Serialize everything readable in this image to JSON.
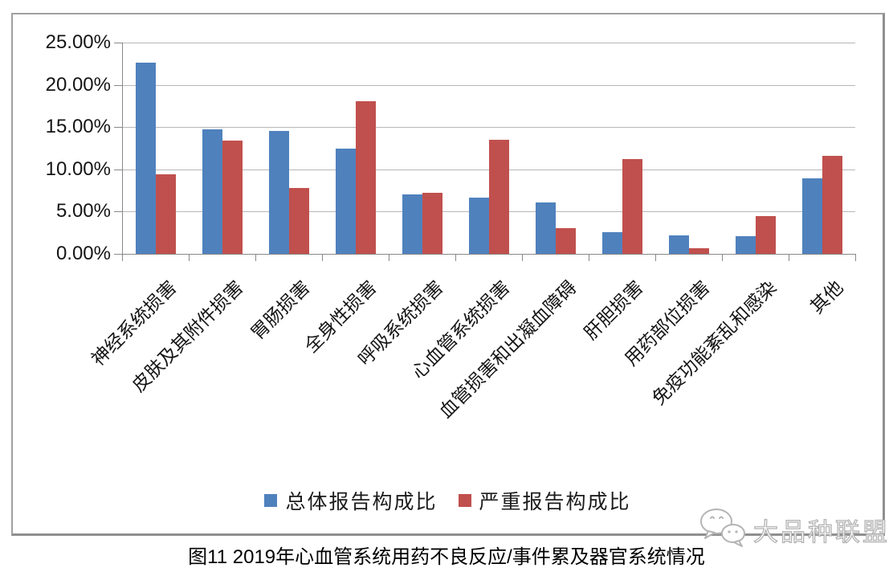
{
  "caption": "图11 2019年心血管系统用药不良反应/事件累及器官系统情况",
  "watermark": {
    "text": "大品种联盟",
    "icon": "wechat-bubbles-icon"
  },
  "colors": {
    "series_blue": "#4F81BD",
    "series_red": "#C0504D",
    "gridline": "#b7b7b7",
    "axis": "#898989"
  },
  "chart_data": {
    "type": "bar",
    "title": "图11 2019年心血管系统用药不良反应/事件累及器官系统情况",
    "xlabel": "",
    "ylabel": "",
    "ylim": [
      0,
      25
    ],
    "ytick_step": 5,
    "yticks": [
      {
        "value": 25,
        "label": "25.00%"
      },
      {
        "value": 20,
        "label": "20.00%"
      },
      {
        "value": 15,
        "label": "15.00%"
      },
      {
        "value": 10,
        "label": "10.00%"
      },
      {
        "value": 5,
        "label": "5.00%"
      },
      {
        "value": 0,
        "label": "0.00%"
      }
    ],
    "grid": true,
    "legend_position": "bottom",
    "categories": [
      "神经系统损害",
      "皮肤及其附件损害",
      "胃肠损害",
      "全身性损害",
      "呼吸系统损害",
      "心血管系统损害",
      "血管损害和出凝血障碍",
      "肝胆损害",
      "用药部位损害",
      "免疫功能紊乱和感染",
      "其他"
    ],
    "series": [
      {
        "name": "总体报告构成比",
        "color": "#4F81BD",
        "values": [
          22.6,
          14.7,
          14.5,
          12.5,
          7.0,
          6.7,
          6.1,
          2.6,
          2.2,
          2.1,
          8.9
        ]
      },
      {
        "name": "严重报告构成比",
        "color": "#C0504D",
        "values": [
          9.4,
          13.4,
          7.8,
          18.1,
          7.2,
          13.5,
          3.0,
          11.2,
          0.7,
          4.5,
          11.6
        ]
      }
    ]
  }
}
